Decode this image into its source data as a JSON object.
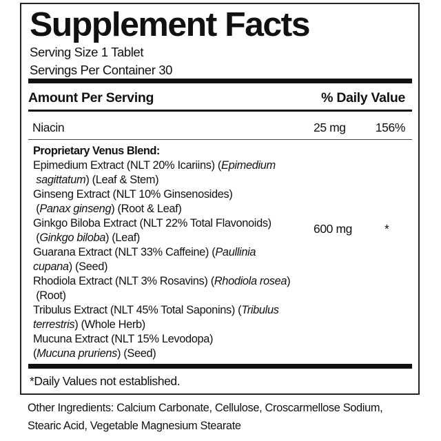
{
  "title": "Supplement Facts",
  "serving_size": "Serving Size 1 Tablet",
  "servings_per_container": "Servings Per Container 30",
  "header": {
    "amount": "Amount Per Serving",
    "daily_value": "% Daily Value"
  },
  "niacin": {
    "name": "Niacin",
    "amount": "25 mg",
    "dv": "156%"
  },
  "blend": {
    "amount": "600 mg",
    "dv": "*",
    "lines": [
      [
        {
          "t": "Proprietary Venus Blend:"
        }
      ],
      [
        {
          "t": "Epimedium Extract (NLT 20% Icariins) ("
        },
        {
          "t": "Epimedium",
          "i": true
        }
      ],
      [
        {
          "t": " "
        },
        {
          "t": "sagittatum",
          "i": true
        },
        {
          "t": ") (Leaf & Stem)"
        }
      ],
      [
        {
          "t": "Ginseng Extract (NLT 10% Ginsenosides)"
        }
      ],
      [
        {
          "t": " ("
        },
        {
          "t": "Panax ginseng",
          "i": true
        },
        {
          "t": ") (Root & Leaf)"
        }
      ],
      [
        {
          "t": "Ginkgo Biloba Extract (NLT 22% Total Flavonoids)"
        }
      ],
      [
        {
          "t": " ("
        },
        {
          "t": "Ginkgo biloba",
          "i": true
        },
        {
          "t": ") (Leaf)"
        }
      ],
      [
        {
          "t": "Guarana Extract (NLT 33% Caffeine) ("
        },
        {
          "t": "Paullinia",
          "i": true
        }
      ],
      [
        {
          "t": "cupana",
          "i": true
        },
        {
          "t": ") (Seed)"
        }
      ],
      [
        {
          "t": "Rhodiola Extract (NLT 3% Rosavins) ("
        },
        {
          "t": "Rhodiola rosea",
          "i": true
        },
        {
          "t": ")"
        }
      ],
      [
        {
          "t": " (Root)"
        }
      ],
      [
        {
          "t": "Tribulus Extract (NLT 45% Total Saponins) ("
        },
        {
          "t": "Tribulus",
          "i": true
        }
      ],
      [
        {
          "t": "terrestris",
          "i": true
        },
        {
          "t": ") (Whole Herb)"
        }
      ],
      [
        {
          "t": "Mucuna Extract (NLT 15% Levodopa)"
        }
      ],
      [
        {
          "t": "("
        },
        {
          "t": "Mucuna pruriens",
          "i": true
        },
        {
          "t": ") (Seed)"
        }
      ]
    ]
  },
  "footnote": "*Daily Values not established.",
  "other_ingredients": [
    "Other Ingredients: Calcium Carbonate, Cellulose, Croscarmellose Sodium,",
    "Stearic Acid, Vegetable Magnesium Stearate"
  ]
}
